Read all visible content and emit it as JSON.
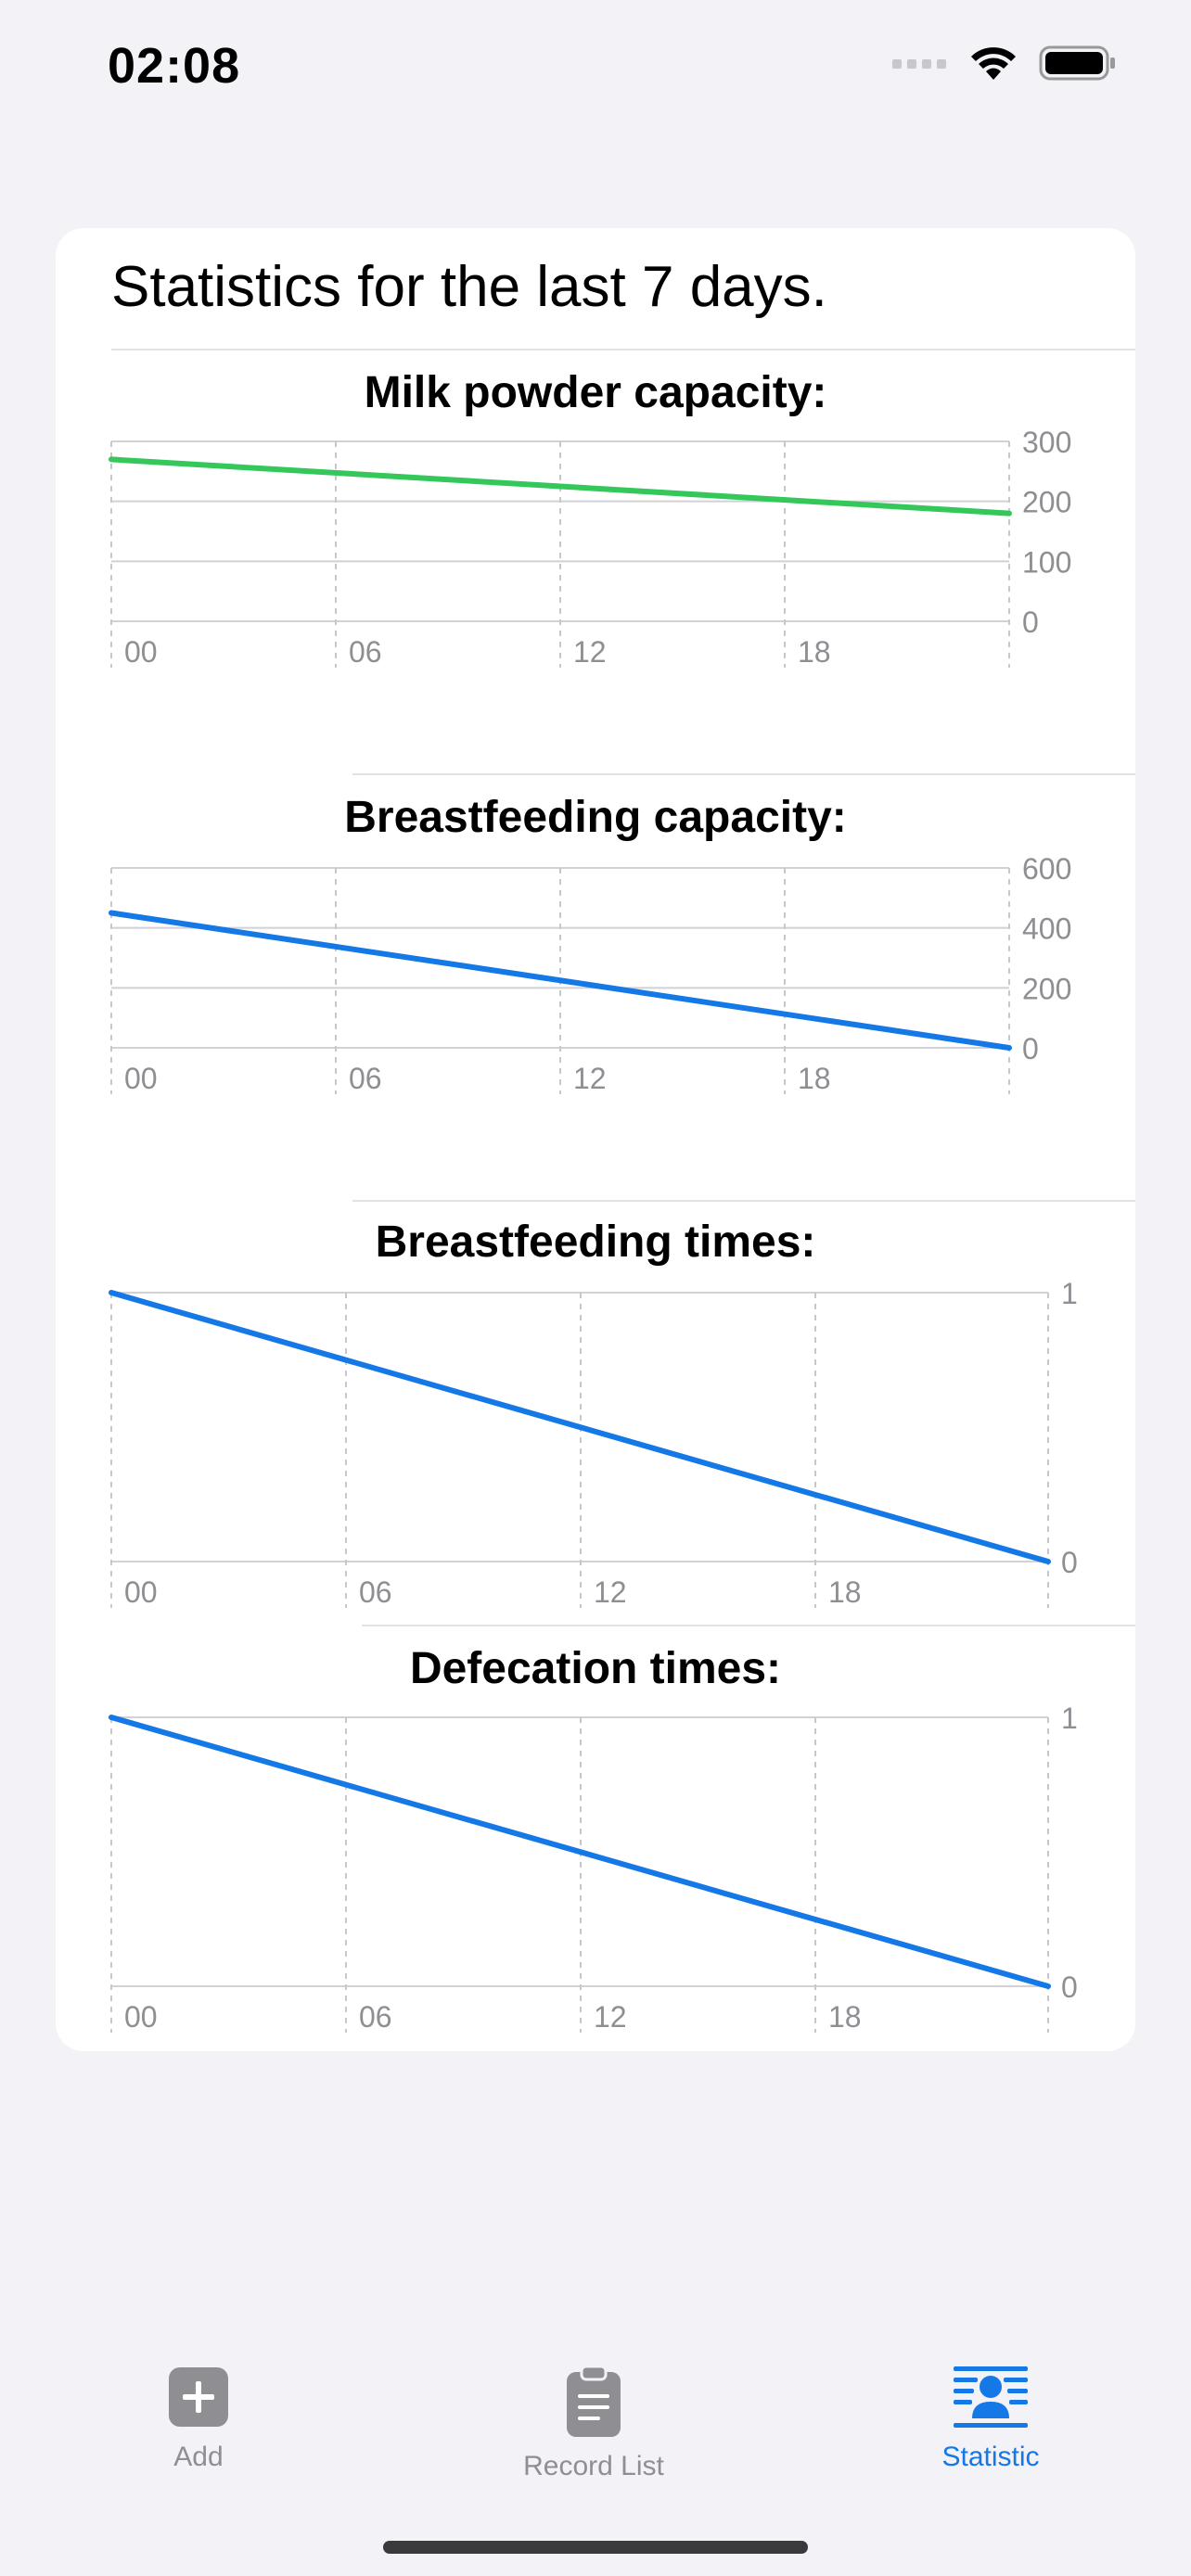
{
  "status_bar": {
    "time": "02:08"
  },
  "card": {
    "title": "Statistics for the last 7 days."
  },
  "charts": [
    {
      "title": "Milk powder capacity:",
      "color": "#34c759",
      "y_ticks": [
        "300",
        "200",
        "100",
        "0"
      ],
      "x_ticks": [
        "00",
        "06",
        "12",
        "18"
      ]
    },
    {
      "title": "Breastfeeding capacity:",
      "color": "#1478e6",
      "y_ticks": [
        "600",
        "400",
        "200",
        "0"
      ],
      "x_ticks": [
        "00",
        "06",
        "12",
        "18"
      ]
    },
    {
      "title": "Breastfeeding times:",
      "color": "#1478e6",
      "y_ticks": [
        "1",
        "0"
      ],
      "x_ticks": [
        "00",
        "06",
        "12",
        "18"
      ]
    },
    {
      "title": "Defecation times:",
      "color": "#1478e6",
      "y_ticks": [
        "1",
        "0"
      ],
      "x_ticks": [
        "00",
        "06",
        "12",
        "18"
      ]
    }
  ],
  "chart_data": [
    {
      "type": "line",
      "title": "Milk powder capacity:",
      "x": [
        "00",
        "24"
      ],
      "series": [
        {
          "values": [
            270,
            180
          ]
        }
      ],
      "ylim": [
        0,
        300
      ],
      "x_ticks": [
        "00",
        "06",
        "12",
        "18"
      ],
      "grid": true
    },
    {
      "type": "line",
      "title": "Breastfeeding capacity:",
      "x": [
        "00",
        "24"
      ],
      "series": [
        {
          "values": [
            450,
            0
          ]
        }
      ],
      "ylim": [
        0,
        600
      ],
      "x_ticks": [
        "00",
        "06",
        "12",
        "18"
      ],
      "grid": true
    },
    {
      "type": "line",
      "title": "Breastfeeding times:",
      "x": [
        "00",
        "24"
      ],
      "series": [
        {
          "values": [
            1,
            0
          ]
        }
      ],
      "ylim": [
        0,
        1
      ],
      "x_ticks": [
        "00",
        "06",
        "12",
        "18"
      ],
      "grid": true
    },
    {
      "type": "line",
      "title": "Defecation times:",
      "x": [
        "00",
        "24"
      ],
      "series": [
        {
          "values": [
            1,
            0
          ]
        }
      ],
      "ylim": [
        0,
        1
      ],
      "x_ticks": [
        "00",
        "06",
        "12",
        "18"
      ],
      "grid": true
    }
  ],
  "tab_bar": {
    "tabs": [
      {
        "label": "Add",
        "icon": "plus-square-icon",
        "active": false
      },
      {
        "label": "Record List",
        "icon": "clipboard-icon",
        "active": false
      },
      {
        "label": "Statistic",
        "icon": "person-list-icon",
        "active": true
      }
    ],
    "active_color": "#1478e6",
    "inactive_color": "#8e8e93"
  }
}
